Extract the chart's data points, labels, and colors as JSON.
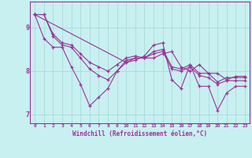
{
  "title": "",
  "xlabel": "Windchill (Refroidissement éolien,°C)",
  "ylabel": "",
  "background_color": "#c8f0f0",
  "grid_color": "#a8dada",
  "line_color": "#993399",
  "marker": "+",
  "xlim": [
    -0.5,
    23.5
  ],
  "ylim": [
    6.8,
    9.6
  ],
  "xticks": [
    0,
    1,
    2,
    3,
    4,
    5,
    6,
    7,
    8,
    9,
    10,
    11,
    12,
    13,
    14,
    15,
    16,
    17,
    18,
    19,
    20,
    21,
    22,
    23
  ],
  "yticks": [
    7,
    8,
    9
  ],
  "series": [
    [
      9.3,
      9.3,
      8.8,
      8.6,
      8.55,
      8.3,
      8.05,
      7.9,
      7.8,
      8.0,
      8.25,
      8.3,
      8.3,
      8.4,
      8.45,
      8.05,
      8.0,
      8.1,
      7.9,
      7.85,
      7.7,
      7.78,
      7.78,
      7.78
    ],
    [
      9.3,
      9.3,
      8.85,
      8.65,
      8.6,
      8.4,
      8.2,
      8.1,
      8.0,
      8.15,
      8.3,
      8.35,
      8.3,
      8.45,
      8.5,
      8.1,
      8.05,
      8.15,
      7.95,
      7.95,
      7.75,
      7.85,
      7.85,
      7.85
    ],
    [
      9.3,
      8.75,
      8.55,
      8.55,
      8.1,
      7.7,
      7.2,
      7.4,
      7.6,
      8.0,
      8.2,
      8.25,
      8.35,
      8.6,
      8.65,
      7.8,
      7.6,
      8.15,
      7.65,
      7.65,
      7.1,
      7.5,
      7.65,
      7.65
    ],
    [
      9.3,
      null,
      null,
      null,
      null,
      null,
      null,
      null,
      null,
      null,
      8.2,
      8.3,
      8.3,
      8.3,
      8.4,
      8.45,
      8.1,
      8.0,
      8.15,
      7.95,
      7.95,
      7.8,
      7.88,
      7.88
    ]
  ]
}
